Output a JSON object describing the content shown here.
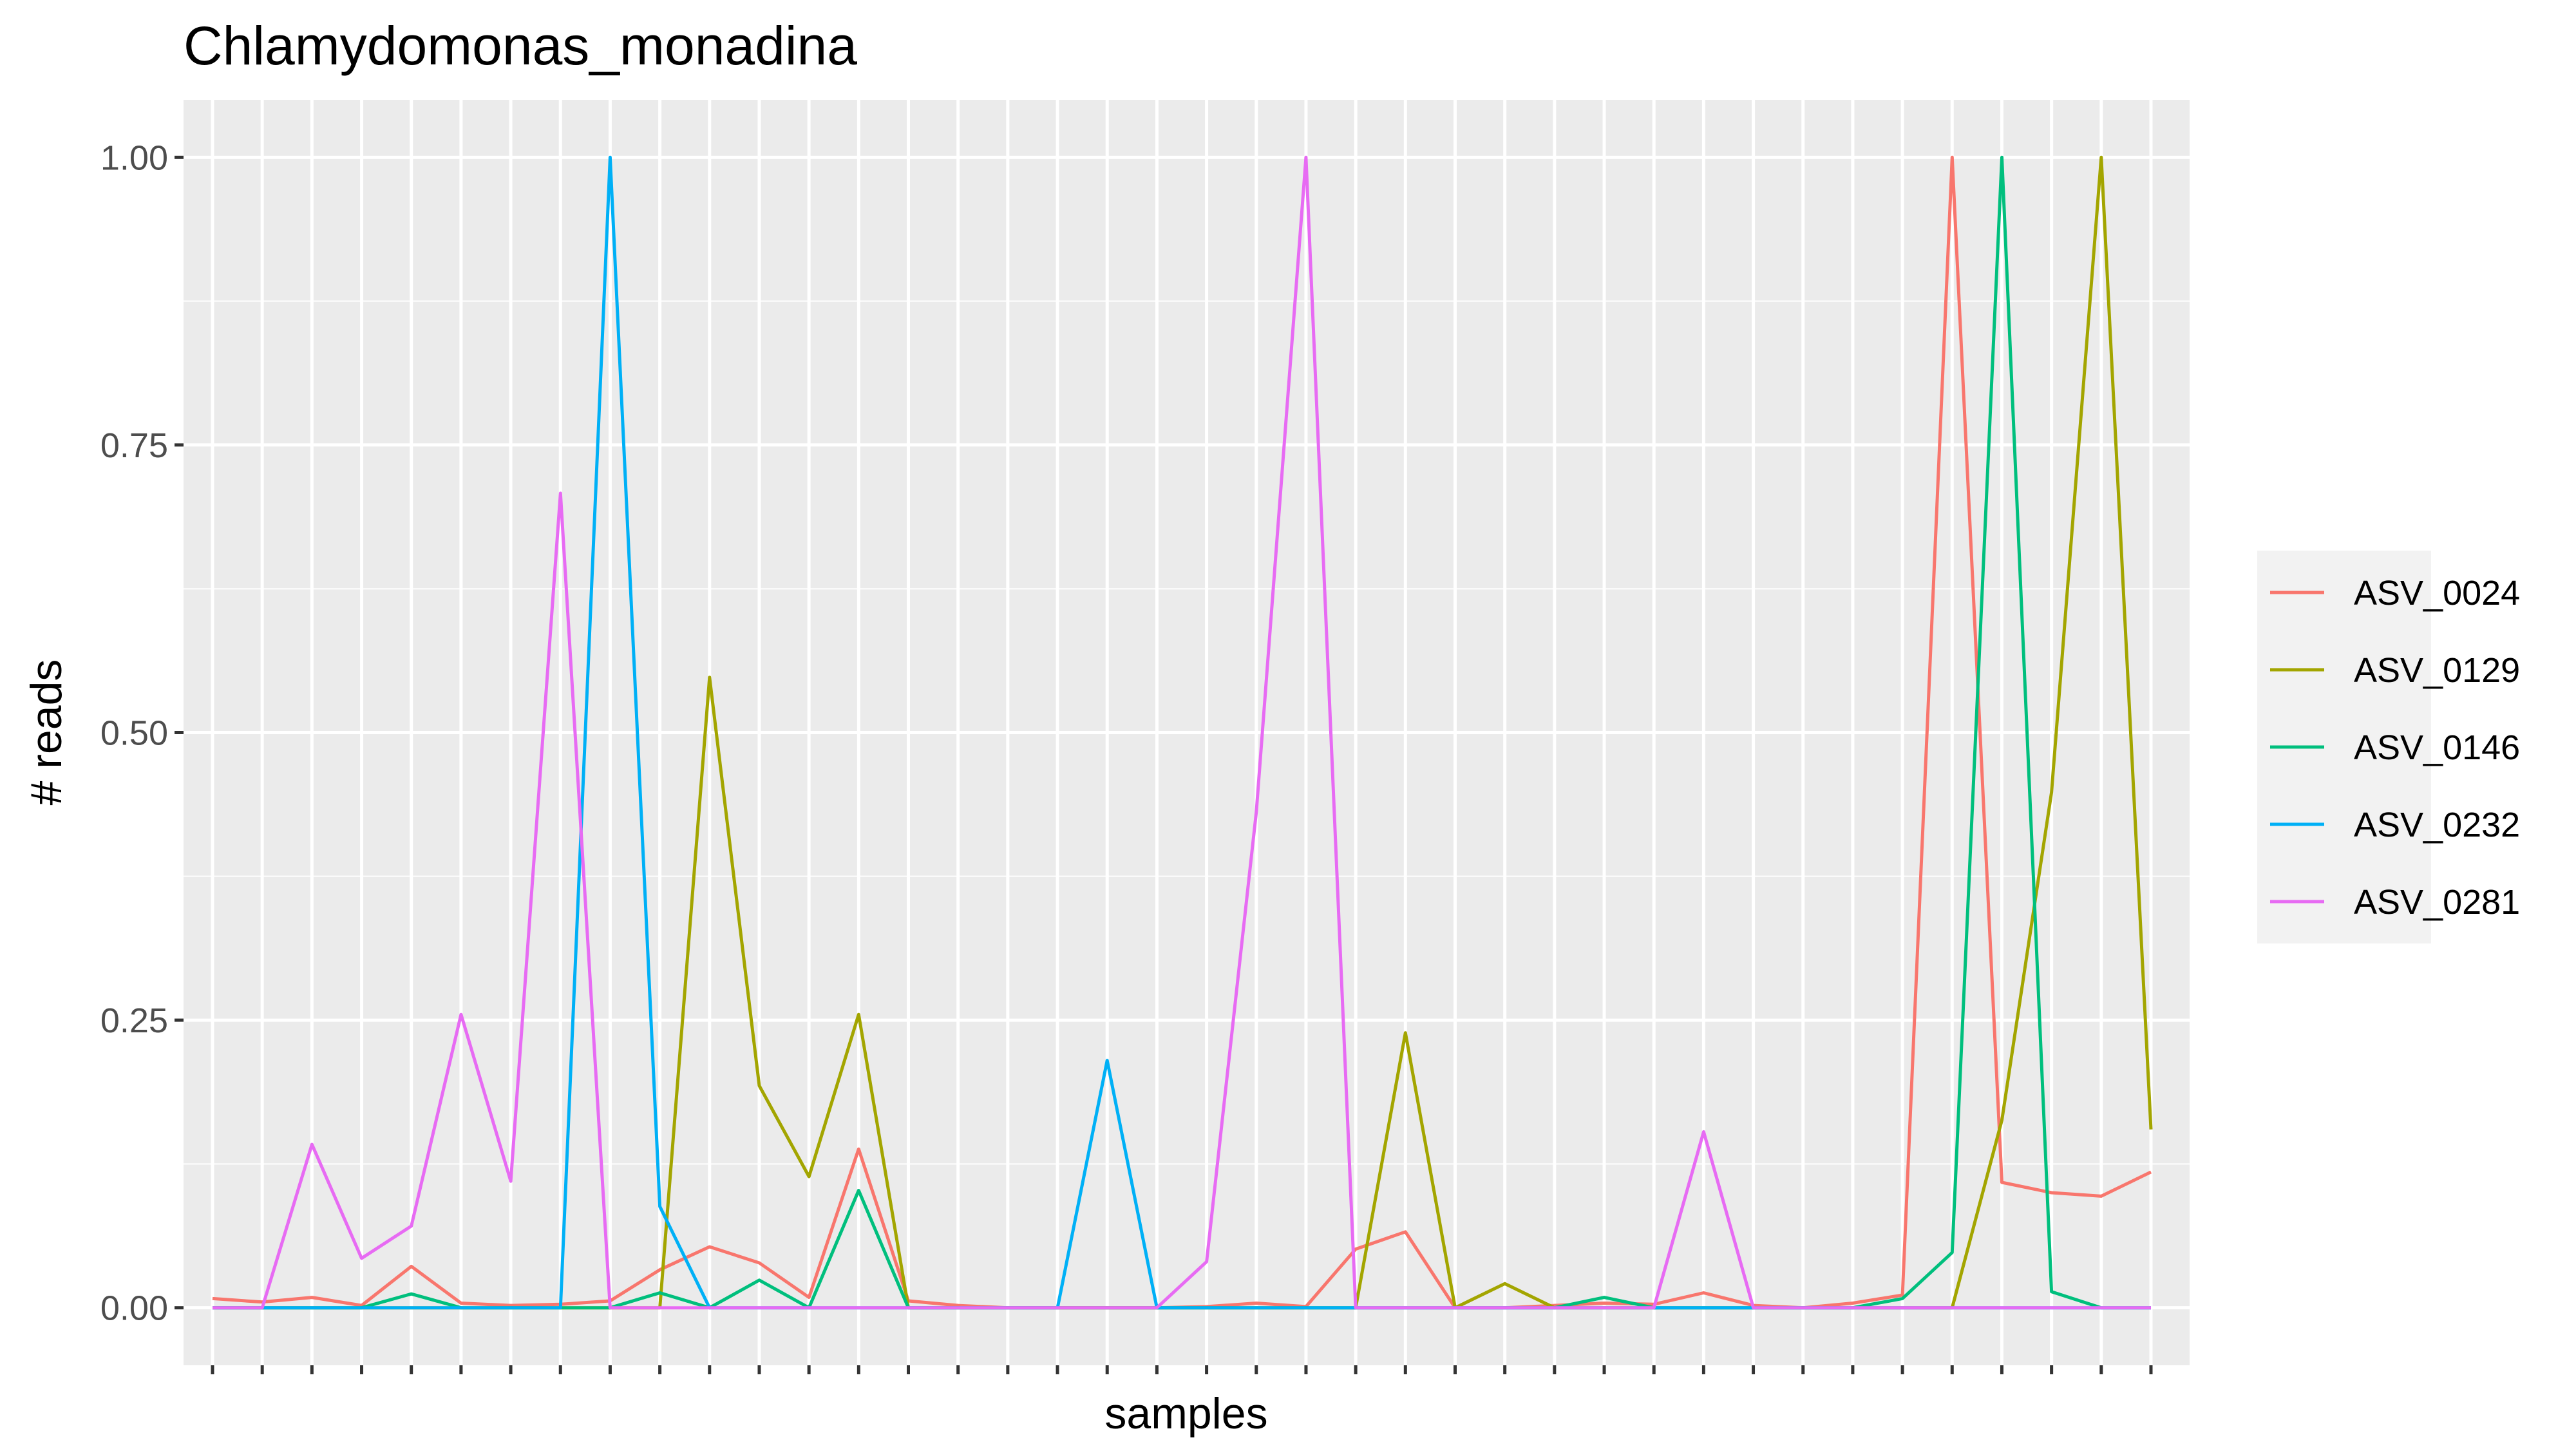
{
  "chart_data": {
    "type": "line",
    "title": "Chlamydomonas_monadina",
    "xlabel": "samples",
    "ylabel": "# reads",
    "ylim": [
      -0.05,
      1.05
    ],
    "y_ticks": [
      0.0,
      0.25,
      0.5,
      0.75,
      1.0
    ],
    "y_tick_labels": [
      "0.00",
      "0.25",
      "0.50",
      "0.75",
      "1.00"
    ],
    "n_samples": 40,
    "x_tick_labels_visible": false,
    "grid": true,
    "legend_position": "right",
    "series": [
      {
        "name": "ASV_0024",
        "color": "#F8766D",
        "values": [
          0.008,
          0.005,
          0.009,
          0.002,
          0.036,
          0.004,
          0.002,
          0.003,
          0.006,
          0.033,
          0.053,
          0.039,
          0.009,
          0.138,
          0.006,
          0.002,
          0,
          0,
          0,
          0,
          0.001,
          0.004,
          0.001,
          0.051,
          0.066,
          0,
          0,
          0.002,
          0.004,
          0.003,
          0.013,
          0.002,
          0,
          0.004,
          0.011,
          1.0,
          0.109,
          0.1,
          0.097,
          0.118
        ]
      },
      {
        "name": "ASV_0129",
        "color": "#A3A500",
        "values": [
          0,
          0,
          0,
          0,
          0,
          0,
          0,
          0,
          0,
          0,
          0.548,
          0.193,
          0.114,
          0.255,
          0,
          0,
          0,
          0,
          0,
          0,
          0,
          0,
          0,
          0,
          0.239,
          0,
          0.021,
          0,
          0,
          0,
          0,
          0,
          0,
          0,
          0,
          0,
          0.163,
          0.448,
          1.0,
          0.155
        ]
      },
      {
        "name": "ASV_0146",
        "color": "#00BF7D",
        "values": [
          0,
          0,
          0,
          0,
          0.012,
          0,
          0,
          0,
          0,
          0.013,
          0,
          0.024,
          0,
          0.102,
          0,
          0,
          0,
          0,
          0,
          0,
          0,
          0,
          0,
          0,
          0,
          0,
          0,
          0,
          0.009,
          0,
          0,
          0,
          0,
          0,
          0.008,
          0.048,
          1.0,
          0.014,
          0,
          0
        ]
      },
      {
        "name": "ASV_0232",
        "color": "#00B0F6",
        "values": [
          0,
          0,
          0,
          0,
          0,
          0,
          0,
          0,
          1.0,
          0.088,
          0,
          0,
          0,
          0,
          0,
          0,
          0,
          0,
          0.215,
          0,
          0,
          0,
          0,
          0,
          0,
          0,
          0,
          0,
          0,
          0,
          0,
          0,
          0,
          0,
          0,
          0,
          0,
          0,
          0,
          0
        ]
      },
      {
        "name": "ASV_0281",
        "color": "#E76BF3",
        "values": [
          0,
          0,
          0.142,
          0.043,
          0.071,
          0.255,
          0.11,
          0.708,
          0,
          0,
          0,
          0,
          0,
          0,
          0,
          0,
          0,
          0,
          0,
          0,
          0.04,
          0.431,
          1.0,
          0,
          0,
          0,
          0,
          0,
          0,
          0,
          0.153,
          0,
          0,
          0,
          0,
          0,
          0,
          0,
          0,
          0
        ]
      }
    ]
  }
}
